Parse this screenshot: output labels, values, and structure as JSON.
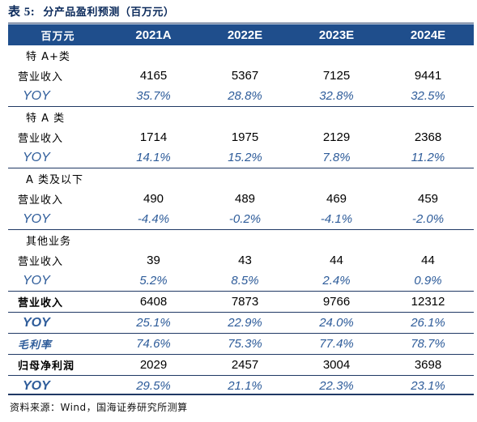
{
  "title": {
    "prefix": "表 5:",
    "text": "分产品盈利预测（百万元）"
  },
  "header": {
    "unit": "百万元",
    "years": [
      "2021A",
      "2022E",
      "2023E",
      "2024E"
    ]
  },
  "groups": [
    {
      "name": "特 A+类",
      "revenue_label": "营业收入",
      "revenue": [
        "4165",
        "5367",
        "7125",
        "9441"
      ],
      "yoy_label": "YOY",
      "yoy": [
        "35.7%",
        "28.8%",
        "32.8%",
        "32.5%"
      ]
    },
    {
      "name": "特 A 类",
      "revenue_label": "营业收入",
      "revenue": [
        "1714",
        "1975",
        "2129",
        "2368"
      ],
      "yoy_label": "YOY",
      "yoy": [
        "14.1%",
        "15.2%",
        "7.8%",
        "11.2%"
      ]
    },
    {
      "name": "A 类及以下",
      "revenue_label": "营业收入",
      "revenue": [
        "490",
        "489",
        "469",
        "459"
      ],
      "yoy_label": "YOY",
      "yoy": [
        "-4.4%",
        "-0.2%",
        "-4.1%",
        "-2.0%"
      ]
    },
    {
      "name": "其他业务",
      "revenue_label": "营业收入",
      "revenue": [
        "39",
        "43",
        "44",
        "44"
      ],
      "yoy_label": "YOY",
      "yoy": [
        "5.2%",
        "8.5%",
        "2.4%",
        "0.9%"
      ]
    }
  ],
  "total": {
    "revenue_label": "营业收入",
    "revenue": [
      "6408",
      "7873",
      "9766",
      "12312"
    ],
    "yoy_label": "YOY",
    "yoy": [
      "25.1%",
      "22.9%",
      "24.0%",
      "26.1%"
    ]
  },
  "gross_margin": {
    "label": "毛利率",
    "values": [
      "74.6%",
      "75.3%",
      "77.4%",
      "78.7%"
    ]
  },
  "net_profit": {
    "label": "归母净利润",
    "values": [
      "2029",
      "2457",
      "3004",
      "3698"
    ],
    "yoy_label": "YOY",
    "yoy": [
      "29.5%",
      "21.1%",
      "22.3%",
      "23.1%"
    ]
  },
  "source": "资料来源：Wind，国海证券研究所测算"
}
